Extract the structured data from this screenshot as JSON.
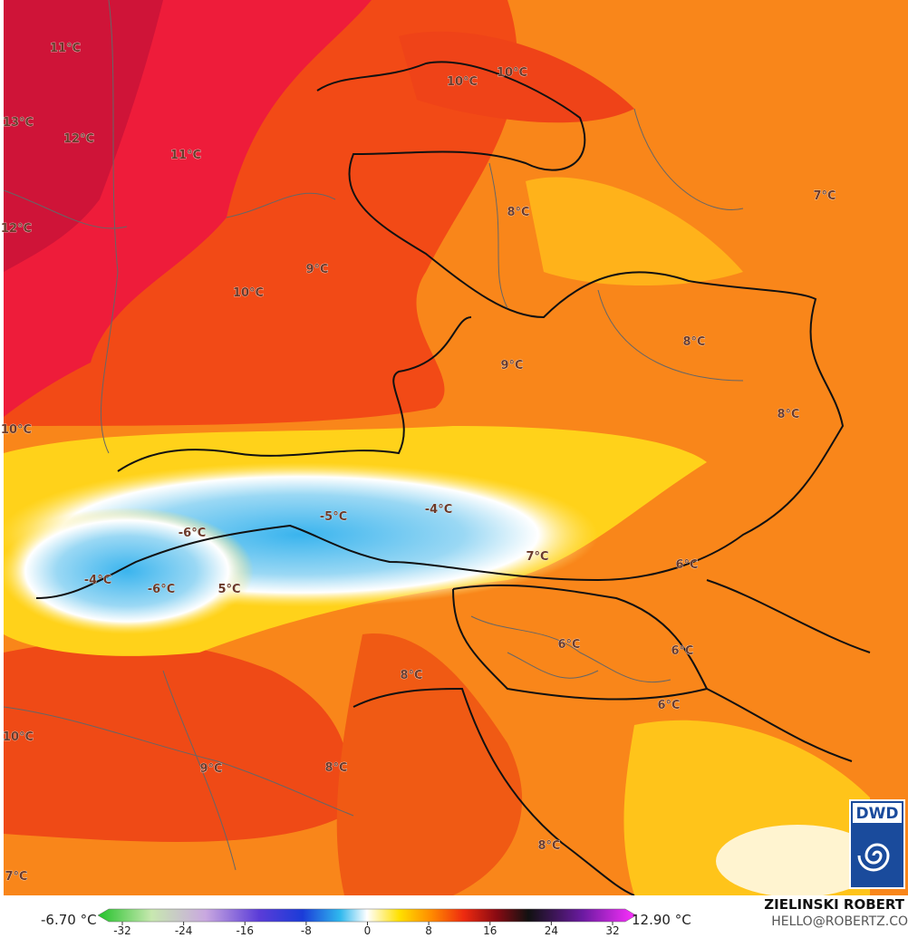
{
  "map": {
    "labels": [
      "11°C",
      "13°C",
      "12°C",
      "11°C",
      "12°C",
      "10°C",
      "10°C",
      "8°C",
      "7°C",
      "9°C",
      "10°C",
      "8°C",
      "9°C",
      "8°C",
      "10°C",
      "-6°C",
      "-5°C",
      "-4°C",
      "7°C",
      "6°C",
      "-4°C",
      "-6°C",
      "5°C",
      "6°C",
      "6°C",
      "8°C",
      "6°C",
      "10°C",
      "9°C",
      "8°C",
      "8°C",
      "7°C"
    ],
    "logo": "DWD"
  },
  "colorbar": {
    "min_label": "-6.70 °C",
    "max_label": "12.90 °C",
    "ticks": [
      -32,
      -24,
      -16,
      -8,
      0,
      8,
      16,
      24,
      32
    ]
  },
  "credits": {
    "name": "ZIELINSKI ROBERT",
    "email": "HELLO@ROBERTZ.CO"
  }
}
